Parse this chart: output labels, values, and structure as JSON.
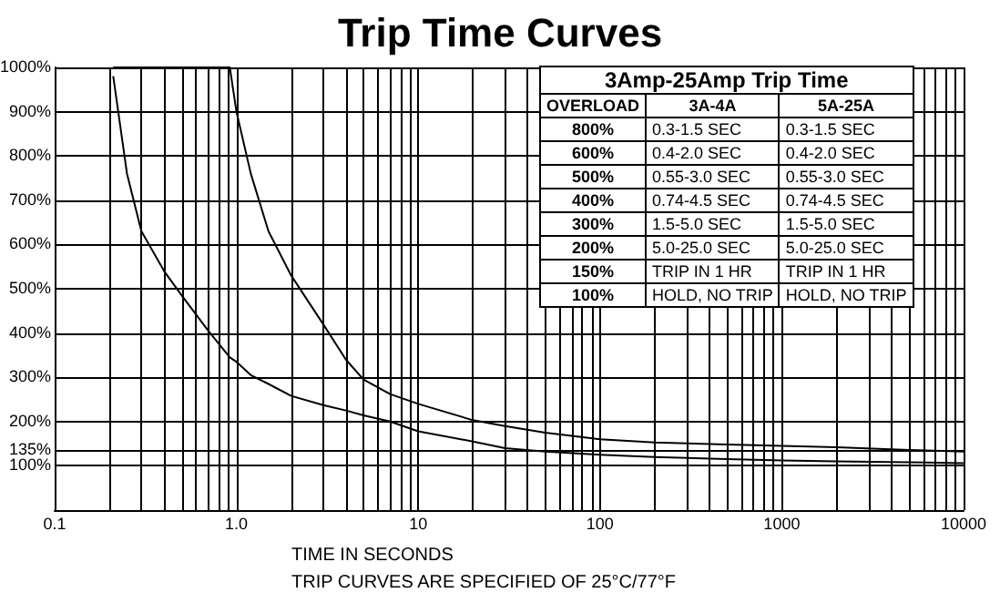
{
  "chart_data": {
    "type": "line",
    "title": "Trip Time Curves",
    "xlabel": "TIME IN SECONDS",
    "annotations": [
      "TRIP CURVES ARE SPECIFIED OF 25°C/77°F",
      "3Amp-25Amp Trip Time",
      "OVERLOAD",
      "3A-4A",
      "5A-25A",
      "800%",
      "0.3-1.5  SEC",
      "0.3-1.5  SEC",
      "600%",
      "0.4-2.0  SEC",
      "0.4-2.0  SEC",
      "500%",
      "0.55-3.0 SEC",
      "0.55-3.0 SEC",
      "400%",
      "0.74-4.5 SEC",
      "0.74-4.5 SEC",
      "300%",
      "1.5-5.0  SEC",
      "1.5-5.0  SEC",
      "200%",
      "5.0-25.0 SEC",
      "5.0-25.0 SEC",
      "150%",
      "TRIP IN 1 HR",
      "TRIP IN 1 HR",
      "100%",
      "HOLD, NO TRIP",
      "HOLD, NO TRIP"
    ],
    "x": [
      0.21,
      0.25,
      0.3,
      0.4,
      0.5,
      0.7,
      0.92,
      1,
      1.2,
      1.5,
      2,
      3,
      4,
      5,
      7,
      10,
      20,
      30,
      50,
      100,
      200,
      500,
      1000,
      2000,
      5000,
      10000
    ],
    "series": [
      {
        "color": "#000000",
        "values": [
          980,
          760,
          630,
          540,
          485,
          405,
          345,
          335,
          305,
          285,
          258,
          237,
          225,
          214,
          200,
          178,
          155,
          140,
          132,
          125,
          120,
          115,
          112,
          110,
          108,
          106
        ]
      },
      {
        "color": "#000000",
        "values": [
          1000,
          1000,
          1000,
          1000,
          1000,
          1000,
          1000,
          900,
          760,
          630,
          530,
          420,
          340,
          295,
          262,
          240,
          203,
          190,
          175,
          160,
          153,
          148,
          145,
          142,
          136,
          132
        ]
      }
    ],
    "log": "x",
    "xlim": [
      0.1,
      10000
    ],
    "xticks": [
      {
        "value": 0.1,
        "label": "0.1"
      },
      {
        "value": 0.2,
        "label": null
      },
      {
        "value": 0.3,
        "label": null
      },
      {
        "value": 0.4,
        "label": null
      },
      {
        "value": 0.5,
        "label": null
      },
      {
        "value": 0.6,
        "label": null
      },
      {
        "value": 0.7,
        "label": null
      },
      {
        "value": 0.8,
        "label": null
      },
      {
        "value": 0.9,
        "label": null
      },
      {
        "value": 1,
        "label": "1.0"
      },
      {
        "value": 2,
        "label": null
      },
      {
        "value": 3,
        "label": null
      },
      {
        "value": 4,
        "label": null
      },
      {
        "value": 5,
        "label": null
      },
      {
        "value": 6,
        "label": null
      },
      {
        "value": 7,
        "label": null
      },
      {
        "value": 8,
        "label": null
      },
      {
        "value": 9,
        "label": null
      },
      10,
      {
        "value": 20,
        "label": null
      },
      {
        "value": 30,
        "label": null
      },
      {
        "value": 40,
        "label": null
      },
      {
        "value": 50,
        "label": null
      },
      {
        "value": 60,
        "label": null
      },
      {
        "value": 70,
        "label": null
      },
      {
        "value": 80,
        "label": null
      },
      {
        "value": 90,
        "label": null
      },
      100,
      {
        "value": 200,
        "label": null
      },
      {
        "value": 300,
        "label": null
      },
      {
        "value": 400,
        "label": null
      },
      {
        "value": 500,
        "label": null
      },
      {
        "value": 600,
        "label": null
      },
      {
        "value": 700,
        "label": null
      },
      {
        "value": 800,
        "label": null
      },
      {
        "value": 900,
        "label": null
      },
      1000,
      {
        "value": 2000,
        "label": null
      },
      {
        "value": 3000,
        "label": null
      },
      {
        "value": 4000,
        "label": null
      },
      {
        "value": 5000,
        "label": null
      },
      {
        "value": 6000,
        "label": null
      },
      {
        "value": 7000,
        "label": null
      },
      {
        "value": 8000,
        "label": null
      },
      {
        "value": 9000,
        "label": null
      },
      10000
    ],
    "ylim": [
      0,
      1000
    ],
    "yticks": [
      {
        "value": 100,
        "label": "100%"
      },
      {
        "value": 135,
        "label": "135%"
      },
      {
        "value": 200,
        "label": "200%"
      },
      {
        "value": 300,
        "label": "300%"
      },
      {
        "value": 400,
        "label": "400%"
      },
      {
        "value": 500,
        "label": "500%"
      },
      {
        "value": 600,
        "label": "600%"
      },
      {
        "value": 700,
        "label": "700%"
      },
      {
        "value": 800,
        "label": "800%"
      },
      {
        "value": 900,
        "label": "900%"
      },
      {
        "value": 1000,
        "label": "1000%"
      }
    ],
    "grid": true
  }
}
